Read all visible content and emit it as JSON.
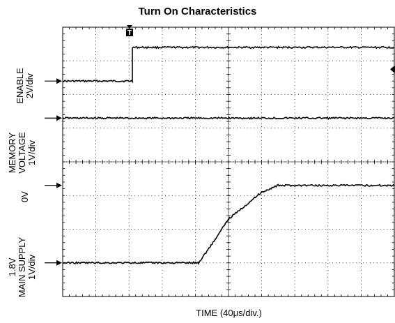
{
  "chart_data": {
    "type": "line",
    "title": "Turn On Characteristics",
    "xlabel": "TIME (40μs/div.)",
    "x_unit_per_div": "40μs",
    "divisions": {
      "x": 10,
      "y": 8
    },
    "grid": true,
    "trigger_marker": "T",
    "channels": [
      {
        "label_lines": [
          "ENABLE",
          "2V/div"
        ],
        "ground_label": ""
      },
      {
        "label_lines": [
          "MEMORY",
          "VOLTAGE",
          "1V/div"
        ],
        "ground_label": ""
      },
      {
        "label_lines": [],
        "ground_label": "0V"
      },
      {
        "label_lines": [
          "1.8V",
          "MAIN SUPPLY",
          "1V/div"
        ],
        "ground_label": ""
      }
    ],
    "series": [
      {
        "name": "",
        "x_div": [
          0,
          2.1,
          2.1,
          10
        ],
        "y_div": [
          6.4,
          6.4,
          7.4,
          7.4
        ]
      },
      {
        "name": "",
        "x_div": [
          0,
          10
        ],
        "y_div": [
          5.3,
          5.3
        ]
      },
      {
        "name": "",
        "x_div": [
          0,
          4.1,
          4.6,
          5.0,
          5.5,
          6.0,
          6.5,
          10
        ],
        "y_div": [
          1.0,
          1.0,
          1.7,
          2.3,
          2.7,
          3.1,
          3.3,
          3.3
        ]
      }
    ]
  }
}
